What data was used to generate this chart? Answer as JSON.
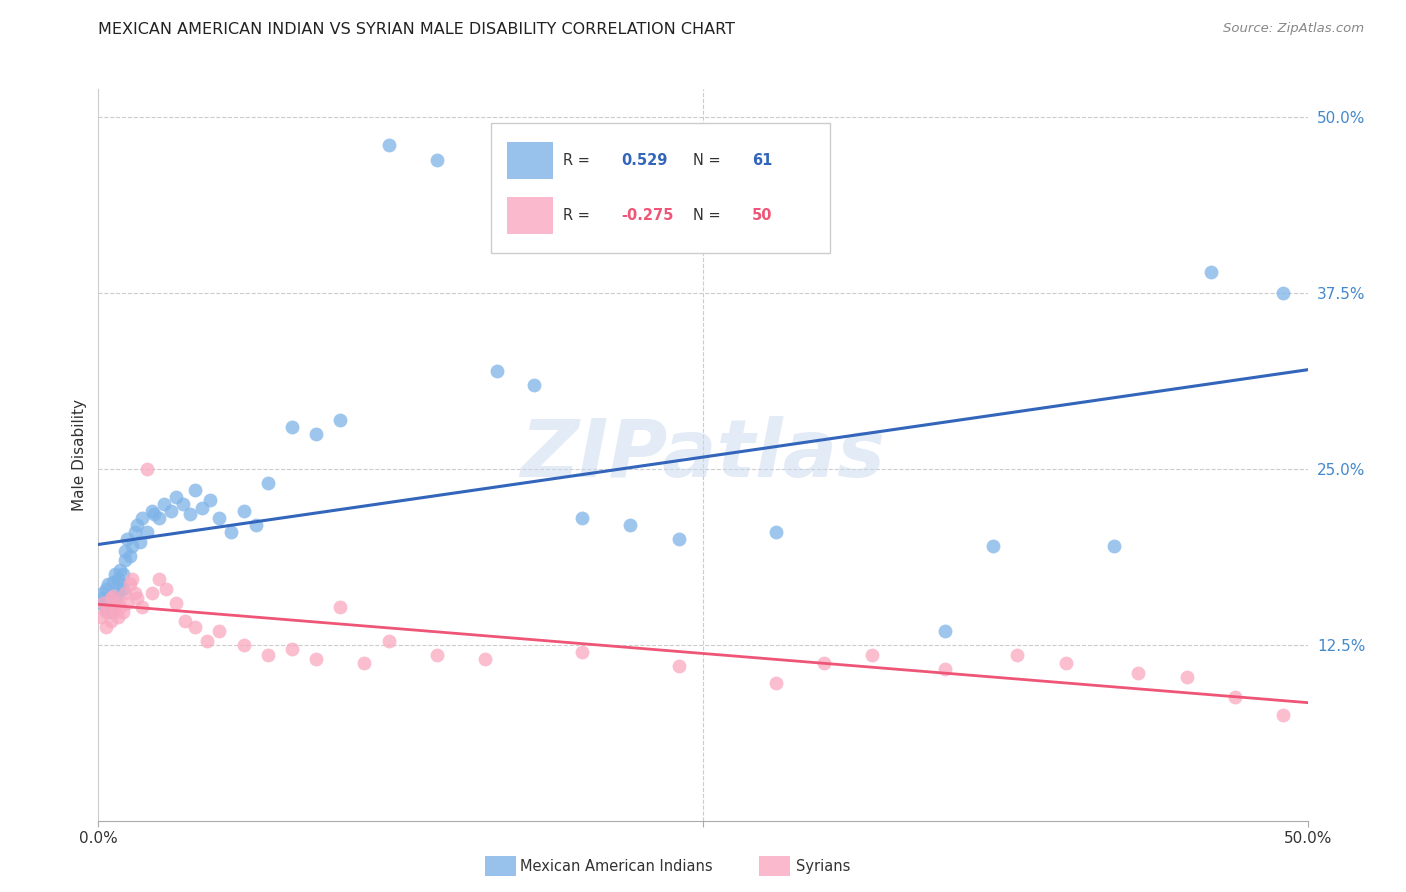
{
  "title": "MEXICAN AMERICAN INDIAN VS SYRIAN MALE DISABILITY CORRELATION CHART",
  "source": "Source: ZipAtlas.com",
  "ylabel": "Male Disability",
  "xlim": [
    0.0,
    0.5
  ],
  "ylim": [
    0.0,
    0.52
  ],
  "ytick_labels_right": [
    "50.0%",
    "37.5%",
    "25.0%",
    "12.5%"
  ],
  "ytick_positions_right": [
    0.5,
    0.375,
    0.25,
    0.125
  ],
  "watermark": "ZIPatlas",
  "blue_color": "#7EB3E8",
  "pink_color": "#F9A8C0",
  "blue_line_color": "#3366BB",
  "pink_line_color": "#EE5577",
  "blue_x": [
    0.001,
    0.002,
    0.002,
    0.003,
    0.003,
    0.004,
    0.004,
    0.005,
    0.005,
    0.006,
    0.006,
    0.007,
    0.007,
    0.008,
    0.008,
    0.009,
    0.009,
    0.01,
    0.01,
    0.011,
    0.011,
    0.012,
    0.013,
    0.014,
    0.015,
    0.016,
    0.017,
    0.018,
    0.02,
    0.022,
    0.023,
    0.025,
    0.027,
    0.03,
    0.032,
    0.035,
    0.038,
    0.04,
    0.043,
    0.046,
    0.05,
    0.055,
    0.06,
    0.065,
    0.07,
    0.08,
    0.09,
    0.1,
    0.12,
    0.14,
    0.165,
    0.18,
    0.2,
    0.22,
    0.24,
    0.28,
    0.35,
    0.37,
    0.42,
    0.46,
    0.49
  ],
  "blue_y": [
    0.155,
    0.158,
    0.162,
    0.15,
    0.165,
    0.155,
    0.168,
    0.148,
    0.16,
    0.152,
    0.17,
    0.158,
    0.175,
    0.162,
    0.172,
    0.168,
    0.178,
    0.165,
    0.175,
    0.185,
    0.192,
    0.2,
    0.188,
    0.195,
    0.205,
    0.21,
    0.198,
    0.215,
    0.205,
    0.22,
    0.218,
    0.215,
    0.225,
    0.22,
    0.23,
    0.225,
    0.218,
    0.235,
    0.222,
    0.228,
    0.215,
    0.205,
    0.22,
    0.21,
    0.24,
    0.28,
    0.275,
    0.285,
    0.48,
    0.47,
    0.32,
    0.31,
    0.215,
    0.21,
    0.2,
    0.205,
    0.135,
    0.195,
    0.195,
    0.39,
    0.375
  ],
  "pink_x": [
    0.001,
    0.002,
    0.003,
    0.003,
    0.004,
    0.005,
    0.005,
    0.006,
    0.007,
    0.008,
    0.008,
    0.009,
    0.01,
    0.011,
    0.012,
    0.013,
    0.014,
    0.015,
    0.016,
    0.018,
    0.02,
    0.022,
    0.025,
    0.028,
    0.032,
    0.036,
    0.04,
    0.045,
    0.05,
    0.06,
    0.07,
    0.08,
    0.09,
    0.1,
    0.11,
    0.12,
    0.14,
    0.16,
    0.2,
    0.24,
    0.28,
    0.3,
    0.32,
    0.35,
    0.38,
    0.4,
    0.43,
    0.45,
    0.47,
    0.49
  ],
  "pink_y": [
    0.145,
    0.155,
    0.138,
    0.148,
    0.15,
    0.142,
    0.158,
    0.16,
    0.148,
    0.155,
    0.145,
    0.152,
    0.148,
    0.162,
    0.155,
    0.168,
    0.172,
    0.162,
    0.158,
    0.152,
    0.25,
    0.162,
    0.172,
    0.165,
    0.155,
    0.142,
    0.138,
    0.128,
    0.135,
    0.125,
    0.118,
    0.122,
    0.115,
    0.152,
    0.112,
    0.128,
    0.118,
    0.115,
    0.12,
    0.11,
    0.098,
    0.112,
    0.118,
    0.108,
    0.118,
    0.112,
    0.105,
    0.102,
    0.088,
    0.075
  ]
}
